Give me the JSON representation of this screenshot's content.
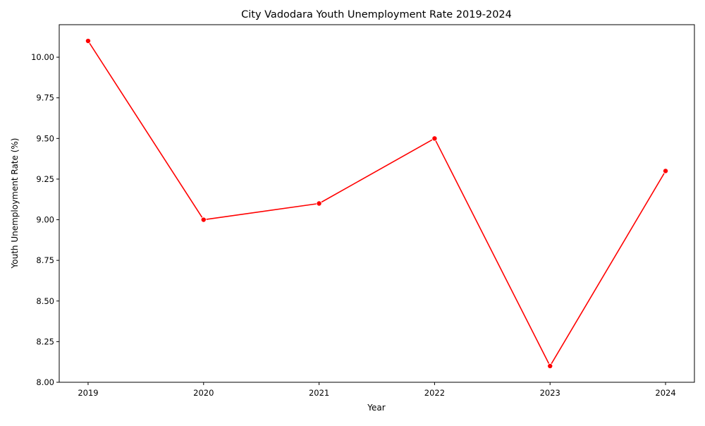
{
  "chart_data": {
    "type": "line",
    "title": "City Vadodara Youth Unemployment Rate 2019-2024",
    "xlabel": "Year",
    "ylabel": "Youth Unemployment Rate (%)",
    "x": [
      "2019",
      "2020",
      "2021",
      "2022",
      "2023",
      "2024"
    ],
    "series": [
      {
        "values": [
          10.1,
          9.0,
          9.1,
          9.5,
          8.1,
          9.3
        ],
        "color": "#ff0000",
        "marker": "circle"
      }
    ],
    "ylim": [
      8.0,
      10.2
    ],
    "yticks": [
      "8.00",
      "8.25",
      "8.50",
      "8.75",
      "9.00",
      "9.25",
      "9.50",
      "9.75",
      "10.00"
    ],
    "grid": false,
    "legend": false
  }
}
